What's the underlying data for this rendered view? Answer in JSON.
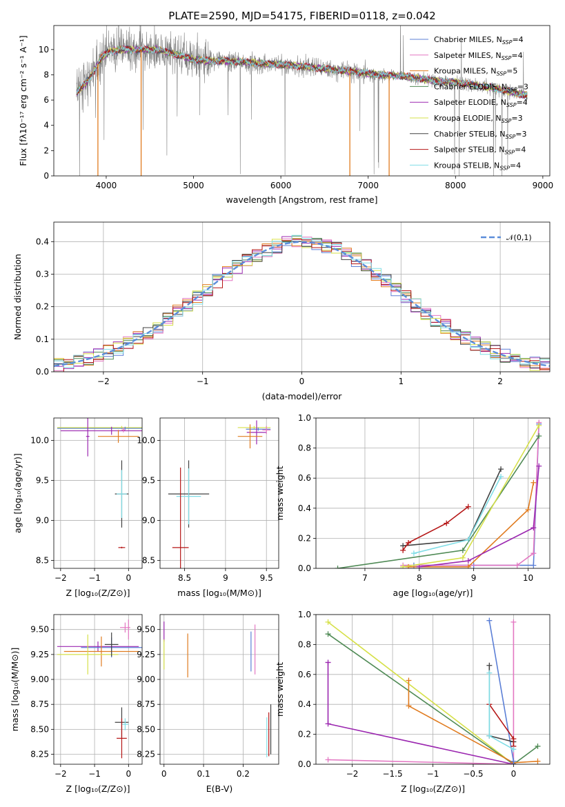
{
  "chart_data": [
    {
      "type": "line",
      "title": "PLATE=2590, MJD=54175, FIBERID=0118, z=0.042",
      "xlabel": "wavelength [Angstrom, rest frame]",
      "ylabel": "Flux [fλ10⁻¹⁷ erg cm⁻² s⁻¹ A⁻¹]",
      "xlim": [
        3400,
        9080
      ],
      "ylim": [
        0,
        11.9
      ],
      "xticks": [
        4000,
        5000,
        6000,
        7000,
        8000,
        9000
      ],
      "yticks": [
        0,
        2,
        4,
        6,
        8,
        10
      ],
      "legend": "top-right",
      "continuum": {
        "x": [
          3650,
          3800,
          3950,
          4050,
          4200,
          4400,
          4600,
          4800,
          5000,
          5200,
          5400,
          5600,
          5800,
          6000,
          6200,
          6400,
          6600,
          6800,
          7000,
          7200,
          7400,
          7600,
          7800,
          8000,
          8200,
          8400,
          8600,
          8800
        ],
        "y": [
          6.5,
          7.6,
          9.4,
          9.9,
          10.0,
          10.0,
          10.0,
          9.6,
          9.2,
          9.1,
          9.1,
          9.0,
          8.9,
          8.8,
          8.7,
          8.55,
          8.4,
          8.3,
          8.1,
          8.0,
          7.9,
          7.7,
          7.5,
          7.4,
          7.2,
          7.0,
          6.7,
          6.4
        ]
      },
      "data_spectrum": {
        "name": "",
        "color": "#808080"
      },
      "series": [
        {
          "name": "Chabrier MILES, N_SSP=4",
          "color": "#5b7fd6"
        },
        {
          "name": "Salpeter MILES, N_SSP=4",
          "color": "#e377c2"
        },
        {
          "name": "Kroupa MILES, N_SSP=5",
          "color": "#e07b1f"
        },
        {
          "name": "Chabrier ELODIE, N_SSP=3",
          "color": "#4f8a55"
        },
        {
          "name": "Salpeter ELODIE, N_SSP=4",
          "color": "#9b27b0"
        },
        {
          "name": "Kroupa ELODIE, N_SSP=3",
          "color": "#d6e048"
        },
        {
          "name": "Chabrier STELIB, N_SSP=3",
          "color": "#404040"
        },
        {
          "name": "Salpeter STELIB, N_SSP=4",
          "color": "#b51515"
        },
        {
          "name": "Kroupa STELIB, N_SSP=4",
          "color": "#7fdde6"
        }
      ],
      "drops": [
        {
          "x": 3905,
          "color": "#e07b1f"
        },
        {
          "x": 4400,
          "color": "#e07b1f"
        },
        {
          "x": 6790,
          "color": "#e07b1f"
        },
        {
          "x": 7240,
          "color": "#e07b1f"
        }
      ]
    },
    {
      "type": "line",
      "xlabel": "(data-model)/error",
      "ylabel": "Normed distribution",
      "xlim": [
        -2.5,
        2.5
      ],
      "ylim": [
        0,
        0.46
      ],
      "xticks": [
        -2,
        -1,
        0,
        1,
        2
      ],
      "yticks": [
        0.0,
        0.1,
        0.2,
        0.3,
        0.4
      ],
      "grid": true,
      "legend": "top-right",
      "reference": {
        "name": "𝒩(0,1)",
        "color": "#5b8dd9",
        "style": "dashed"
      },
      "histogram_bins": [
        -2.5,
        2.5,
        50
      ],
      "series_colors": [
        "#5b7fd6",
        "#e377c2",
        "#e07b1f",
        "#4f8a55",
        "#9b27b0",
        "#d6e048",
        "#404040",
        "#b51515",
        "#7fdde6"
      ]
    },
    {
      "type": "scatter",
      "xlabel": "Z [log₁₀(Z/Z⊙)]",
      "ylabel": "age  [log₁₀(age/yr)]",
      "xlim": [
        -2.2,
        0.4
      ],
      "ylim": [
        8.4,
        10.28
      ],
      "xticks": [
        -2,
        -1,
        0
      ],
      "yticks": [
        8.5,
        9.0,
        9.5,
        10.0
      ],
      "grid": true,
      "points": [
        {
          "x": -0.2,
          "y": 10.16,
          "xerr": 1.9,
          "yerr": 0.02,
          "color": "#d6e048"
        },
        {
          "x": -0.1,
          "y": 10.15,
          "xerr": 2.0,
          "yerr": 0.02,
          "color": "#5b7fd6"
        },
        {
          "x": -0.5,
          "y": 10.12,
          "xerr": 1.5,
          "yerr": 0.05,
          "color": "#9b27b0"
        },
        {
          "x": -0.3,
          "y": 10.05,
          "xerr": 0.6,
          "yerr": 0.08,
          "color": "#e07b1f"
        },
        {
          "x": -0.15,
          "y": 10.13,
          "xerr": 0.05,
          "yerr": 0.03,
          "color": "#e377c2"
        },
        {
          "x": -1.2,
          "y": 10.05,
          "xerr": 0.05,
          "yerr": 0.25,
          "color": "#9b27b0"
        },
        {
          "x": -0.2,
          "y": 9.33,
          "xerr": 0.2,
          "yerr": 0.42,
          "color": "#404040"
        },
        {
          "x": -0.2,
          "y": 9.33,
          "xerr": 0.15,
          "yerr": 0.3,
          "color": "#7fdde6"
        },
        {
          "x": -0.2,
          "y": 8.66,
          "xerr": 0.1,
          "yerr": 0.01,
          "color": "#b51515"
        }
      ]
    },
    {
      "type": "scatter",
      "xlabel": "mass [log₁₀(M/M⊙)]",
      "ylabel": "",
      "xlim": [
        8.2,
        9.65
      ],
      "ylim": [
        8.4,
        10.28
      ],
      "xticks": [
        8.5,
        9.0,
        9.5
      ],
      "yticks": [
        8.5,
        9.0,
        9.5,
        10.0
      ],
      "grid": true,
      "points": [
        {
          "x": 9.35,
          "y": 10.16,
          "xerr": 0.2,
          "yerr": 0.02,
          "color": "#d6e048"
        },
        {
          "x": 9.4,
          "y": 10.14,
          "xerr": 0.15,
          "yerr": 0.02,
          "color": "#5b7fd6"
        },
        {
          "x": 9.38,
          "y": 10.1,
          "xerr": 0.12,
          "yerr": 0.15,
          "color": "#9b27b0"
        },
        {
          "x": 9.3,
          "y": 10.05,
          "xerr": 0.15,
          "yerr": 0.15,
          "color": "#e07b1f"
        },
        {
          "x": 9.5,
          "y": 10.13,
          "xerr": 0.05,
          "yerr": 0.05,
          "color": "#e377c2"
        },
        {
          "x": 8.55,
          "y": 9.33,
          "xerr": 0.25,
          "yerr": 0.42,
          "color": "#404040"
        },
        {
          "x": 8.55,
          "y": 9.3,
          "xerr": 0.15,
          "yerr": 0.35,
          "color": "#7fdde6"
        },
        {
          "x": 8.45,
          "y": 8.66,
          "xerr": 0.1,
          "yerr": 1.0,
          "color": "#b51515"
        }
      ]
    },
    {
      "type": "line",
      "xlabel": "age  [log₁₀(age/yr)]",
      "ylabel": "mass weight",
      "xlim": [
        6.1,
        10.4
      ],
      "ylim": [
        0,
        1.0
      ],
      "xticks": [
        7,
        8,
        9,
        10
      ],
      "yticks": [
        0.0,
        0.2,
        0.4,
        0.6,
        0.8,
        1.0
      ],
      "grid": true,
      "series": [
        {
          "color": "#5b7fd6",
          "x": [
            7.9,
            9.0,
            10.1,
            10.2
          ],
          "y": [
            0.02,
            0.02,
            0.02,
            0.96
          ]
        },
        {
          "color": "#e377c2",
          "x": [
            7.7,
            9.8,
            10.1,
            10.2
          ],
          "y": [
            0.02,
            0.02,
            0.1,
            0.97
          ]
        },
        {
          "color": "#e07b1f",
          "x": [
            7.8,
            8.9,
            10.0,
            10.1
          ],
          "y": [
            0.01,
            0.01,
            0.39,
            0.57
          ]
        },
        {
          "color": "#4f8a55",
          "x": [
            6.5,
            8.8,
            10.2
          ],
          "y": [
            0.0,
            0.12,
            0.88
          ]
        },
        {
          "color": "#9b27b0",
          "x": [
            8.0,
            8.9,
            10.1,
            10.2
          ],
          "y": [
            0.01,
            0.05,
            0.27,
            0.68
          ]
        },
        {
          "color": "#d6e048",
          "x": [
            7.7,
            8.8,
            10.2
          ],
          "y": [
            0.01,
            0.07,
            0.95
          ]
        },
        {
          "color": "#404040",
          "x": [
            7.7,
            8.9,
            9.5
          ],
          "y": [
            0.15,
            0.19,
            0.66
          ]
        },
        {
          "color": "#b51515",
          "x": [
            7.7,
            7.8,
            8.5,
            8.9
          ],
          "y": [
            0.12,
            0.17,
            0.3,
            0.41
          ]
        },
        {
          "color": "#7fdde6",
          "x": [
            7.9,
            8.9,
            9.5
          ],
          "y": [
            0.1,
            0.19,
            0.61
          ]
        }
      ]
    },
    {
      "type": "scatter",
      "xlabel": "Z [log₁₀(Z/Z⊙)]",
      "ylabel": "mass [log₁₀(M/M⊙)]",
      "xlim": [
        -2.2,
        0.4
      ],
      "ylim": [
        8.15,
        9.65
      ],
      "xticks": [
        -2,
        -1,
        0
      ],
      "yticks": [
        8.25,
        8.5,
        8.75,
        9.0,
        9.25,
        9.5
      ],
      "grid": true,
      "points": [
        {
          "x": -0.1,
          "y": 9.52,
          "xerr": 0.15,
          "yerr": 0.05,
          "color": "#e377c2"
        },
        {
          "x": -0.9,
          "y": 9.33,
          "xerr": 1.2,
          "yerr": 0.05,
          "color": "#9b27b0"
        },
        {
          "x": -0.5,
          "y": 9.32,
          "xerr": 0.9,
          "yerr": 0.1,
          "color": "#5b7fd6"
        },
        {
          "x": -0.8,
          "y": 9.28,
          "xerr": 1.1,
          "yerr": 0.15,
          "color": "#e07b1f"
        },
        {
          "x": -1.2,
          "y": 9.25,
          "xerr": 0.9,
          "yerr": 0.2,
          "color": "#d6e048"
        },
        {
          "x": -0.5,
          "y": 9.35,
          "xerr": 0.2,
          "yerr": 0.12,
          "color": "#404040"
        },
        {
          "x": -0.2,
          "y": 8.57,
          "xerr": 0.2,
          "yerr": 0.15,
          "color": "#404040"
        },
        {
          "x": -0.1,
          "y": 8.55,
          "xerr": 0.1,
          "yerr": 0.06,
          "color": "#7fdde6"
        },
        {
          "x": -0.2,
          "y": 8.41,
          "xerr": 0.15,
          "yerr": 0.2,
          "color": "#b51515"
        },
        {
          "x": 0.0,
          "y": 9.5,
          "xerr": 0.0,
          "yerr": 0.1,
          "color": "#e377c2"
        }
      ]
    },
    {
      "type": "scatter",
      "xlabel": "E(B-V)",
      "ylabel": "",
      "xlim": [
        -0.01,
        0.29
      ],
      "ylim": [
        8.15,
        9.65
      ],
      "xticks": [
        0.0,
        0.1,
        0.2
      ],
      "yticks": [
        8.25,
        8.5,
        8.75,
        9.0,
        9.25,
        9.5
      ],
      "grid": true,
      "points": [
        {
          "x": 0.0,
          "y": 9.48,
          "yerr": 0.1,
          "color": "#9b27b0"
        },
        {
          "x": 0.0,
          "y": 9.25,
          "yerr": 0.15,
          "color": "#d6e048"
        },
        {
          "x": 0.06,
          "y": 9.24,
          "yerr": 0.22,
          "color": "#e07b1f"
        },
        {
          "x": 0.22,
          "y": 9.28,
          "yerr": 0.2,
          "color": "#5b7fd6"
        },
        {
          "x": 0.23,
          "y": 9.3,
          "yerr": 0.25,
          "color": "#e377c2"
        },
        {
          "x": 0.26,
          "y": 8.42,
          "yerr": 0.2,
          "color": "#7fdde6"
        },
        {
          "x": 0.265,
          "y": 8.45,
          "yerr": 0.22,
          "color": "#b51515"
        },
        {
          "x": 0.27,
          "y": 8.5,
          "yerr": 0.25,
          "color": "#404040"
        }
      ]
    },
    {
      "type": "line",
      "xlabel": "Z [log₁₀(Z/Z⊙)]",
      "ylabel": "mass weight",
      "xlim": [
        -2.45,
        0.45
      ],
      "ylim": [
        0,
        1.0
      ],
      "xticks": [
        -2.0,
        -1.5,
        -1.0,
        -0.5,
        0.0
      ],
      "yticks": [
        0.0,
        0.2,
        0.4,
        0.6,
        0.8,
        1.0
      ],
      "grid": true,
      "series": [
        {
          "color": "#d6e048",
          "x": [
            -2.3,
            0.0
          ],
          "y": [
            0.95,
            0.0
          ]
        },
        {
          "color": "#4f8a55",
          "x": [
            -2.3,
            0.0,
            0.3
          ],
          "y": [
            0.87,
            0.0,
            0.12
          ]
        },
        {
          "color": "#9b27b0",
          "x": [
            -2.3,
            -2.3,
            0.0
          ],
          "y": [
            0.68,
            0.27,
            0.0
          ]
        },
        {
          "color": "#e377c2",
          "x": [
            -2.3,
            0.0,
            0.0
          ],
          "y": [
            0.03,
            0.0,
            0.95
          ]
        },
        {
          "color": "#e07b1f",
          "x": [
            -1.3,
            -1.3,
            0.0,
            0.3
          ],
          "y": [
            0.56,
            0.39,
            0.01,
            0.02
          ]
        },
        {
          "color": "#5b7fd6",
          "x": [
            -0.3,
            0.0,
            0.0
          ],
          "y": [
            0.96,
            0.02,
            0.0
          ]
        },
        {
          "color": "#404040",
          "x": [
            -0.3,
            -0.3,
            0.0
          ],
          "y": [
            0.66,
            0.19,
            0.15
          ]
        },
        {
          "color": "#b51515",
          "x": [
            -0.3,
            0.0,
            0.0
          ],
          "y": [
            0.4,
            0.17,
            0.12
          ]
        },
        {
          "color": "#7fdde6",
          "x": [
            -0.3,
            -0.3,
            0.0
          ],
          "y": [
            0.61,
            0.19,
            0.1
          ]
        }
      ]
    }
  ]
}
